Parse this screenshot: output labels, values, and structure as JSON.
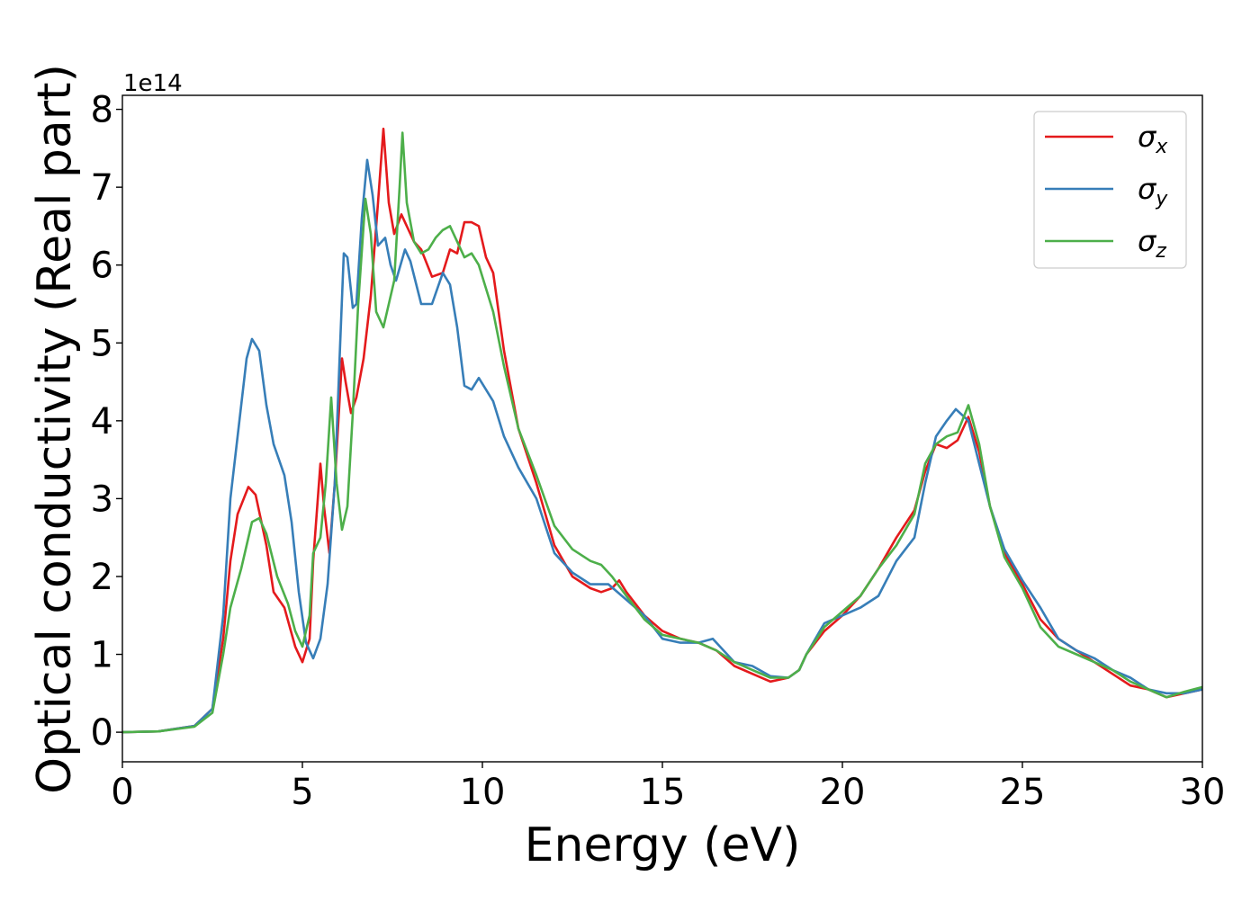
{
  "chart_data": {
    "type": "line",
    "xlabel": "Energy (eV)",
    "ylabel": "Optical conductivity (Real part)",
    "y_offset_text": "1e14",
    "xlim": [
      0,
      30
    ],
    "ylim": [
      -0.38,
      8.18
    ],
    "y_scale": 100000000000000.0,
    "x_ticks": [
      0,
      5,
      10,
      15,
      20,
      25,
      30
    ],
    "y_ticks": [
      0,
      1,
      2,
      3,
      4,
      5,
      6,
      7,
      8
    ],
    "grid": false,
    "legend_position": "top-right",
    "series": [
      {
        "name": "σ_x",
        "name_base": "σ",
        "name_sub": "x",
        "color": "#e41a1c",
        "points": [
          [
            0,
            0
          ],
          [
            1,
            0.01
          ],
          [
            2,
            0.08
          ],
          [
            2.5,
            0.3
          ],
          [
            2.8,
            1.2
          ],
          [
            3.0,
            2.2
          ],
          [
            3.2,
            2.8
          ],
          [
            3.5,
            3.15
          ],
          [
            3.7,
            3.05
          ],
          [
            4.0,
            2.4
          ],
          [
            4.2,
            1.8
          ],
          [
            4.5,
            1.6
          ],
          [
            4.8,
            1.1
          ],
          [
            5.0,
            0.9
          ],
          [
            5.2,
            1.2
          ],
          [
            5.3,
            2.2
          ],
          [
            5.5,
            3.45
          ],
          [
            5.6,
            2.9
          ],
          [
            5.75,
            2.3
          ],
          [
            5.9,
            3.2
          ],
          [
            6.1,
            4.8
          ],
          [
            6.2,
            4.5
          ],
          [
            6.35,
            4.1
          ],
          [
            6.5,
            4.3
          ],
          [
            6.7,
            4.8
          ],
          [
            6.9,
            5.6
          ],
          [
            7.1,
            6.8
          ],
          [
            7.25,
            7.75
          ],
          [
            7.4,
            6.8
          ],
          [
            7.55,
            6.4
          ],
          [
            7.75,
            6.65
          ],
          [
            7.9,
            6.5
          ],
          [
            8.1,
            6.3
          ],
          [
            8.3,
            6.2
          ],
          [
            8.6,
            5.85
          ],
          [
            8.9,
            5.9
          ],
          [
            9.1,
            6.2
          ],
          [
            9.3,
            6.15
          ],
          [
            9.5,
            6.55
          ],
          [
            9.7,
            6.55
          ],
          [
            9.9,
            6.5
          ],
          [
            10.1,
            6.1
          ],
          [
            10.3,
            5.9
          ],
          [
            10.6,
            4.9
          ],
          [
            11.0,
            3.9
          ],
          [
            11.5,
            3.2
          ],
          [
            12.0,
            2.4
          ],
          [
            12.5,
            2.0
          ],
          [
            13.0,
            1.85
          ],
          [
            13.3,
            1.8
          ],
          [
            13.6,
            1.85
          ],
          [
            13.8,
            1.95
          ],
          [
            14.0,
            1.8
          ],
          [
            14.5,
            1.5
          ],
          [
            15.0,
            1.3
          ],
          [
            15.5,
            1.2
          ],
          [
            16.0,
            1.15
          ],
          [
            16.5,
            1.05
          ],
          [
            17.0,
            0.85
          ],
          [
            17.5,
            0.75
          ],
          [
            18.0,
            0.65
          ],
          [
            18.5,
            0.7
          ],
          [
            18.8,
            0.8
          ],
          [
            19.0,
            1.0
          ],
          [
            19.5,
            1.3
          ],
          [
            20.0,
            1.5
          ],
          [
            20.5,
            1.75
          ],
          [
            21.0,
            2.1
          ],
          [
            21.5,
            2.5
          ],
          [
            22.0,
            2.85
          ],
          [
            22.3,
            3.35
          ],
          [
            22.6,
            3.7
          ],
          [
            22.9,
            3.65
          ],
          [
            23.2,
            3.75
          ],
          [
            23.5,
            4.05
          ],
          [
            23.8,
            3.6
          ],
          [
            24.1,
            2.9
          ],
          [
            24.5,
            2.3
          ],
          [
            25.0,
            1.9
          ],
          [
            25.5,
            1.45
          ],
          [
            26.0,
            1.2
          ],
          [
            26.5,
            1.05
          ],
          [
            27.0,
            0.9
          ],
          [
            27.5,
            0.75
          ],
          [
            28.0,
            0.6
          ],
          [
            28.5,
            0.55
          ],
          [
            29.0,
            0.45
          ],
          [
            29.5,
            0.5
          ],
          [
            30.0,
            0.55
          ]
        ]
      },
      {
        "name": "σ_y",
        "name_base": "σ",
        "name_sub": "y",
        "color": "#377eb8",
        "points": [
          [
            0,
            0
          ],
          [
            1,
            0.01
          ],
          [
            2,
            0.08
          ],
          [
            2.5,
            0.3
          ],
          [
            2.8,
            1.5
          ],
          [
            3.0,
            3.0
          ],
          [
            3.2,
            3.8
          ],
          [
            3.45,
            4.8
          ],
          [
            3.6,
            5.05
          ],
          [
            3.8,
            4.9
          ],
          [
            4.0,
            4.2
          ],
          [
            4.2,
            3.7
          ],
          [
            4.5,
            3.3
          ],
          [
            4.7,
            2.7
          ],
          [
            4.9,
            1.8
          ],
          [
            5.1,
            1.15
          ],
          [
            5.3,
            0.95
          ],
          [
            5.5,
            1.2
          ],
          [
            5.7,
            1.9
          ],
          [
            5.9,
            3.2
          ],
          [
            6.05,
            5.0
          ],
          [
            6.15,
            6.15
          ],
          [
            6.25,
            6.1
          ],
          [
            6.4,
            5.45
          ],
          [
            6.5,
            5.5
          ],
          [
            6.65,
            6.6
          ],
          [
            6.8,
            7.35
          ],
          [
            6.95,
            6.9
          ],
          [
            7.1,
            6.25
          ],
          [
            7.3,
            6.35
          ],
          [
            7.45,
            6.0
          ],
          [
            7.6,
            5.8
          ],
          [
            7.85,
            6.2
          ],
          [
            8.0,
            6.05
          ],
          [
            8.3,
            5.5
          ],
          [
            8.6,
            5.5
          ],
          [
            8.9,
            5.9
          ],
          [
            9.1,
            5.75
          ],
          [
            9.3,
            5.2
          ],
          [
            9.5,
            4.45
          ],
          [
            9.7,
            4.4
          ],
          [
            9.9,
            4.55
          ],
          [
            10.1,
            4.4
          ],
          [
            10.3,
            4.25
          ],
          [
            10.6,
            3.8
          ],
          [
            11.0,
            3.4
          ],
          [
            11.5,
            3.0
          ],
          [
            12.0,
            2.3
          ],
          [
            12.5,
            2.05
          ],
          [
            13.0,
            1.9
          ],
          [
            13.5,
            1.9
          ],
          [
            14.0,
            1.7
          ],
          [
            14.5,
            1.5
          ],
          [
            15.0,
            1.2
          ],
          [
            15.5,
            1.15
          ],
          [
            16.0,
            1.15
          ],
          [
            16.4,
            1.2
          ],
          [
            16.7,
            1.05
          ],
          [
            17.0,
            0.9
          ],
          [
            17.5,
            0.85
          ],
          [
            18.0,
            0.72
          ],
          [
            18.5,
            0.7
          ],
          [
            18.8,
            0.8
          ],
          [
            19.0,
            1.0
          ],
          [
            19.5,
            1.4
          ],
          [
            20.0,
            1.5
          ],
          [
            20.5,
            1.6
          ],
          [
            21.0,
            1.75
          ],
          [
            21.5,
            2.2
          ],
          [
            22.0,
            2.5
          ],
          [
            22.3,
            3.2
          ],
          [
            22.6,
            3.8
          ],
          [
            22.9,
            4.0
          ],
          [
            23.15,
            4.15
          ],
          [
            23.5,
            4.0
          ],
          [
            23.8,
            3.45
          ],
          [
            24.1,
            2.9
          ],
          [
            24.5,
            2.35
          ],
          [
            25.0,
            1.95
          ],
          [
            25.5,
            1.6
          ],
          [
            26.0,
            1.2
          ],
          [
            26.5,
            1.05
          ],
          [
            27.0,
            0.95
          ],
          [
            27.5,
            0.8
          ],
          [
            28.0,
            0.7
          ],
          [
            28.5,
            0.55
          ],
          [
            29.0,
            0.5
          ],
          [
            29.5,
            0.5
          ],
          [
            30.0,
            0.55
          ]
        ]
      },
      {
        "name": "σ_z",
        "name_base": "σ",
        "name_sub": "z",
        "color": "#4daf4a",
        "points": [
          [
            0,
            0
          ],
          [
            1,
            0.01
          ],
          [
            2,
            0.07
          ],
          [
            2.5,
            0.25
          ],
          [
            2.8,
            1.0
          ],
          [
            3.0,
            1.6
          ],
          [
            3.3,
            2.1
          ],
          [
            3.6,
            2.7
          ],
          [
            3.8,
            2.75
          ],
          [
            4.0,
            2.55
          ],
          [
            4.3,
            2.0
          ],
          [
            4.6,
            1.65
          ],
          [
            4.8,
            1.3
          ],
          [
            5.0,
            1.1
          ],
          [
            5.2,
            1.5
          ],
          [
            5.3,
            2.3
          ],
          [
            5.5,
            2.5
          ],
          [
            5.65,
            3.2
          ],
          [
            5.8,
            4.3
          ],
          [
            5.95,
            3.2
          ],
          [
            6.1,
            2.6
          ],
          [
            6.25,
            2.9
          ],
          [
            6.4,
            4.1
          ],
          [
            6.55,
            5.5
          ],
          [
            6.75,
            6.85
          ],
          [
            6.9,
            6.4
          ],
          [
            7.05,
            5.4
          ],
          [
            7.25,
            5.2
          ],
          [
            7.4,
            5.5
          ],
          [
            7.55,
            5.8
          ],
          [
            7.7,
            7.0
          ],
          [
            7.78,
            7.7
          ],
          [
            7.9,
            6.8
          ],
          [
            8.1,
            6.3
          ],
          [
            8.3,
            6.15
          ],
          [
            8.5,
            6.2
          ],
          [
            8.7,
            6.35
          ],
          [
            8.9,
            6.45
          ],
          [
            9.1,
            6.5
          ],
          [
            9.3,
            6.3
          ],
          [
            9.5,
            6.1
          ],
          [
            9.7,
            6.15
          ],
          [
            9.9,
            6.0
          ],
          [
            10.1,
            5.7
          ],
          [
            10.3,
            5.4
          ],
          [
            10.6,
            4.7
          ],
          [
            11.0,
            3.9
          ],
          [
            11.5,
            3.3
          ],
          [
            12.0,
            2.65
          ],
          [
            12.5,
            2.35
          ],
          [
            13.0,
            2.2
          ],
          [
            13.3,
            2.15
          ],
          [
            13.6,
            2.0
          ],
          [
            14.0,
            1.75
          ],
          [
            14.5,
            1.45
          ],
          [
            15.0,
            1.25
          ],
          [
            15.5,
            1.2
          ],
          [
            16.0,
            1.15
          ],
          [
            16.5,
            1.05
          ],
          [
            17.0,
            0.9
          ],
          [
            17.5,
            0.8
          ],
          [
            18.0,
            0.7
          ],
          [
            18.5,
            0.7
          ],
          [
            18.8,
            0.8
          ],
          [
            19.0,
            1.0
          ],
          [
            19.5,
            1.35
          ],
          [
            20.0,
            1.55
          ],
          [
            20.5,
            1.75
          ],
          [
            21.0,
            2.1
          ],
          [
            21.5,
            2.4
          ],
          [
            22.0,
            2.8
          ],
          [
            22.3,
            3.45
          ],
          [
            22.6,
            3.7
          ],
          [
            22.9,
            3.8
          ],
          [
            23.2,
            3.85
          ],
          [
            23.5,
            4.2
          ],
          [
            23.8,
            3.7
          ],
          [
            24.1,
            2.9
          ],
          [
            24.5,
            2.25
          ],
          [
            25.0,
            1.85
          ],
          [
            25.5,
            1.35
          ],
          [
            26.0,
            1.1
          ],
          [
            26.5,
            1.0
          ],
          [
            27.0,
            0.9
          ],
          [
            27.5,
            0.8
          ],
          [
            28.0,
            0.65
          ],
          [
            28.5,
            0.55
          ],
          [
            29.0,
            0.45
          ],
          [
            29.5,
            0.52
          ],
          [
            30.0,
            0.58
          ]
        ]
      }
    ]
  }
}
